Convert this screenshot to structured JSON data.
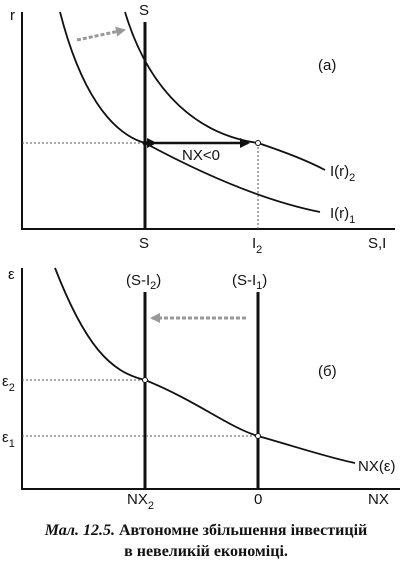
{
  "panel_a": {
    "tag": "(a)",
    "y_axis": "r",
    "x_axis": "S,I",
    "saving_label": "S",
    "saving_tick": "S",
    "invest_tick_main": "I",
    "invest_tick_sub": "2",
    "curve1_main": "I(r)",
    "curve1_sub": "1",
    "curve2_main": "I(r)",
    "curve2_sub": "2",
    "gap_label": "NX<0"
  },
  "panel_b": {
    "tag": "(б)",
    "y_axis": "ε",
    "x_axis": "NX",
    "line_new": "(S-I",
    "line_new_sub": "2",
    "line_new_close": ")",
    "line_old": "(S-I",
    "line_old_sub": "1",
    "line_old_close": ")",
    "e2_main": "ε",
    "e2_sub": "2",
    "e1_main": "ε",
    "e1_sub": "1",
    "curve_label": "NX(ε)",
    "tick_nx2_main": "NX",
    "tick_nx2_sub": "2",
    "tick_zero": "0"
  },
  "caption": {
    "lead": "Мал. 12.5.",
    "line1": "Автономне збільшення інвестицій",
    "line2": "в невеликій економіці."
  }
}
